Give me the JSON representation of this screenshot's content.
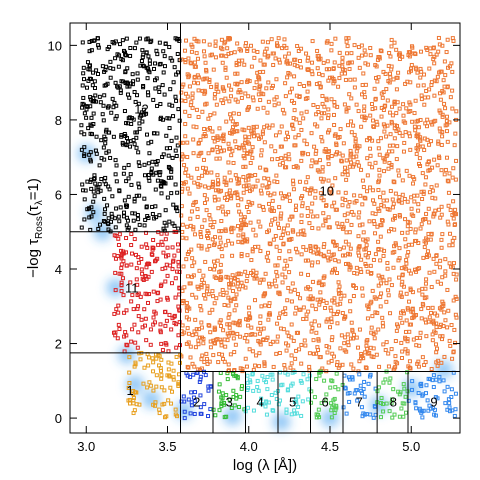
{
  "chart_data": {
    "type": "scatter",
    "title": "",
    "xlabel": "log (λ [Å])",
    "ylabel": "−log τ_Ross(τ_λ=1)",
    "ylabel_parts": {
      "prefix": "−log τ",
      "sub": "Ross",
      "suffix": "(τ",
      "sub2": "λ",
      "end": "=1)"
    },
    "xlim": [
      2.9,
      5.3
    ],
    "ylim": [
      -0.4,
      10.6
    ],
    "xticks": [
      3.0,
      3.5,
      4.0,
      4.5,
      5.0
    ],
    "xtick_labels": [
      "3.0",
      "3.5",
      "4.0",
      "4.5",
      "5.0"
    ],
    "yticks": [
      0,
      2,
      4,
      6,
      8,
      10
    ],
    "ytick_labels": [
      "0",
      "2",
      "4",
      "6",
      "8",
      "10"
    ],
    "grid": false,
    "region_lines": {
      "vertical_full": [
        3.58
      ],
      "vertical_lower": [
        3.78,
        3.98,
        4.18,
        4.38,
        4.58,
        4.79,
        4.98
      ],
      "horizontal_left": [
        5.0,
        1.75
      ],
      "horizontal_right": [
        1.25
      ]
    },
    "region_labels": [
      {
        "text": "1",
        "x": 3.27,
        "y": 0.75
      },
      {
        "text": "2",
        "x": 3.68,
        "y": 0.45
      },
      {
        "text": "3",
        "x": 3.88,
        "y": 0.45
      },
      {
        "text": "4",
        "x": 4.07,
        "y": 0.45
      },
      {
        "text": "5",
        "x": 4.27,
        "y": 0.45
      },
      {
        "text": "6",
        "x": 4.47,
        "y": 0.45
      },
      {
        "text": "7",
        "x": 4.68,
        "y": 0.45
      },
      {
        "text": "8",
        "x": 4.89,
        "y": 0.45
      },
      {
        "text": "9",
        "x": 5.14,
        "y": 0.45
      },
      {
        "text": "10",
        "x": 4.48,
        "y": 6.1
      },
      {
        "text": "11",
        "x": 3.28,
        "y": 3.5
      },
      {
        "text": "12",
        "x": 3.34,
        "y": 8.3
      }
    ],
    "series": [
      {
        "color": "#000000",
        "x": [
          2.97,
          3.58
        ],
        "y": [
          5.0,
          10.2
        ]
      },
      {
        "color": "#dd2222",
        "x": [
          3.17,
          3.58
        ],
        "y": [
          1.75,
          5.0
        ]
      },
      {
        "color": "#e8a020",
        "x": [
          3.25,
          3.58
        ],
        "y": [
          0.0,
          1.75
        ]
      },
      {
        "color": "#ee7733",
        "x": [
          3.58,
          5.28
        ],
        "y": [
          1.25,
          10.2
        ]
      },
      {
        "color": "#2244dd",
        "x": [
          3.58,
          3.78
        ],
        "y": [
          0.0,
          1.25
        ]
      },
      {
        "color": "#33bb33",
        "x": [
          3.78,
          3.98
        ],
        "y": [
          0.0,
          1.25
        ]
      },
      {
        "color": "#55dddd",
        "x": [
          3.98,
          4.18
        ],
        "y": [
          0.0,
          1.25
        ]
      },
      {
        "color": "#55dddd",
        "x": [
          4.18,
          4.38
        ],
        "y": [
          0.0,
          1.25
        ]
      },
      {
        "color": "#55cc55",
        "x": [
          4.38,
          4.58
        ],
        "y": [
          0.0,
          1.25
        ]
      },
      {
        "color": "#3388ee",
        "x": [
          4.58,
          4.79
        ],
        "y": [
          0.0,
          1.25
        ]
      },
      {
        "color": "#55cc55",
        "x": [
          4.79,
          4.98
        ],
        "y": [
          0.0,
          1.25
        ]
      },
      {
        "color": "#3388ee",
        "x": [
          4.98,
          5.28
        ],
        "y": [
          0.0,
          1.25
        ]
      }
    ],
    "density": [
      {
        "x": 3.0,
        "y": 7.1
      },
      {
        "x": 3.05,
        "y": 5.5
      },
      {
        "x": 3.1,
        "y": 5.0
      },
      {
        "x": 3.18,
        "y": 3.5
      },
      {
        "x": 3.25,
        "y": 1.7
      },
      {
        "x": 3.3,
        "y": 0.9
      },
      {
        "x": 3.4,
        "y": 0.5
      },
      {
        "x": 3.6,
        "y": 0.2
      },
      {
        "x": 3.9,
        "y": 0.05
      },
      {
        "x": 4.2,
        "y": -0.1
      },
      {
        "x": 4.5,
        "y": 0.0
      },
      {
        "x": 4.8,
        "y": 0.35
      },
      {
        "x": 5.0,
        "y": 0.8
      },
      {
        "x": 5.2,
        "y": 1.3
      }
    ]
  }
}
